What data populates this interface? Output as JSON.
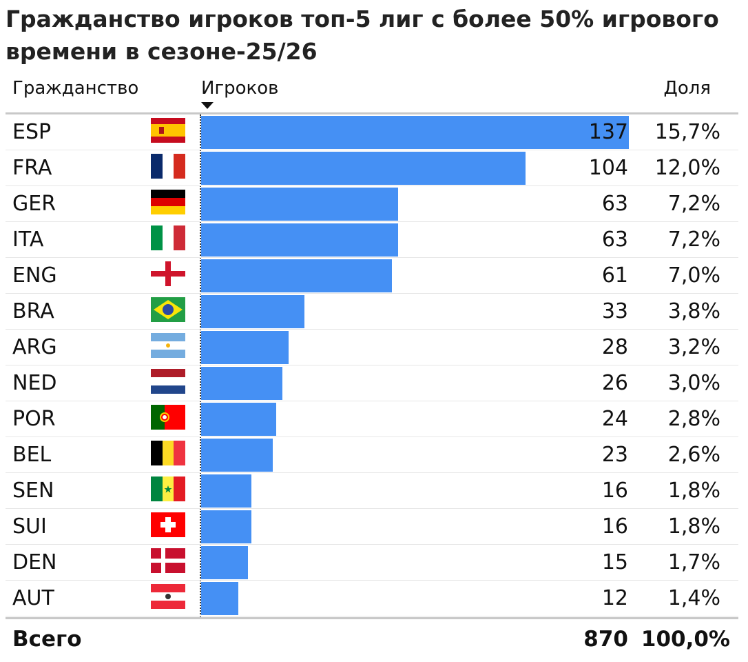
{
  "title": "Гражданство игроков топ-5 лиг с более 50% игрового времени в сезоне-25/26",
  "columns": {
    "country": "Гражданство",
    "players": "Игроков",
    "share": "Доля"
  },
  "chart_data": {
    "type": "bar",
    "orientation": "horizontal",
    "sorted_by": "players",
    "sort_direction": "descending",
    "bar_color": "#4590f4",
    "categories": [
      "ESP",
      "FRA",
      "GER",
      "ITA",
      "ENG",
      "BRA",
      "ARG",
      "NED",
      "POR",
      "BEL",
      "SEN",
      "SUI",
      "DEN",
      "AUT"
    ],
    "values": [
      137,
      104,
      63,
      63,
      61,
      33,
      28,
      26,
      24,
      23,
      16,
      16,
      15,
      12
    ],
    "shares": [
      "15,7%",
      "12,0%",
      "7,2%",
      "7,2%",
      "7,0%",
      "3,8%",
      "3,2%",
      "3,0%",
      "2,8%",
      "2,6%",
      "1,8%",
      "1,8%",
      "1,7%",
      "1,4%"
    ],
    "flag_icons": [
      "spain-flag-icon",
      "france-flag-icon",
      "germany-flag-icon",
      "italy-flag-icon",
      "england-flag-icon",
      "brazil-flag-icon",
      "argentina-flag-icon",
      "netherlands-flag-icon",
      "portugal-flag-icon",
      "belgium-flag-icon",
      "senegal-flag-icon",
      "switzerland-flag-icon",
      "denmark-flag-icon",
      "austria-flag-icon"
    ],
    "xlim": [
      0,
      137
    ]
  },
  "total": {
    "label": "Всего",
    "players": "870",
    "share": "100,0%"
  }
}
